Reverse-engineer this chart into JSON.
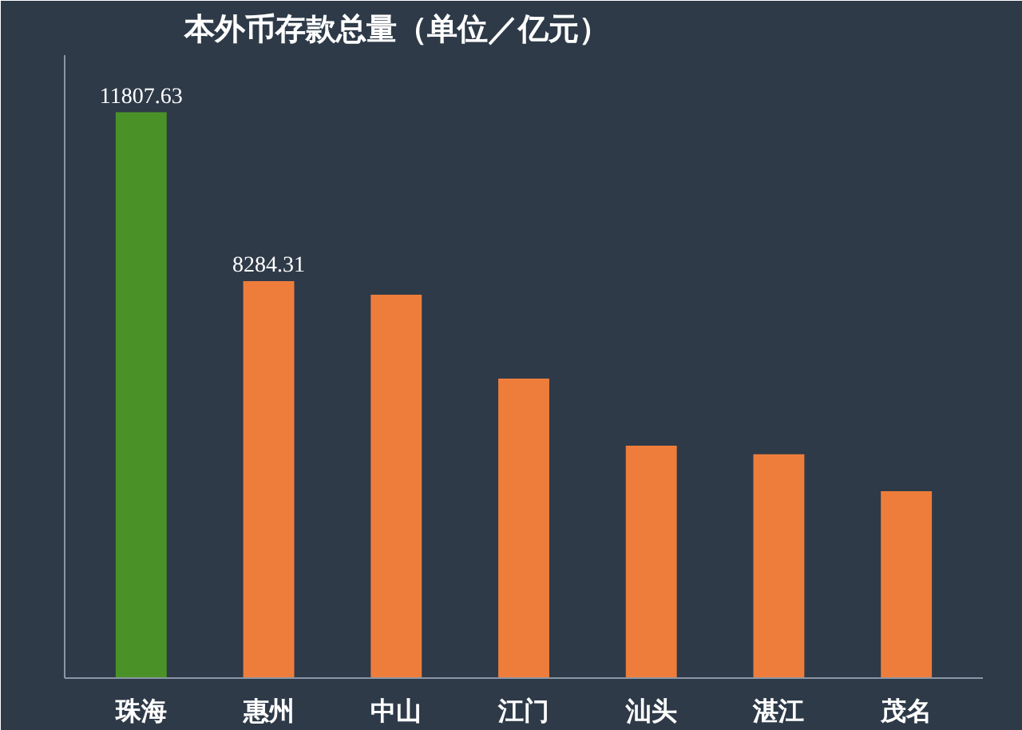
{
  "chart_data": {
    "type": "bar",
    "title": "本外币存款总量（单位／亿元）",
    "categories": [
      "珠海",
      "惠州",
      "中山",
      "江门",
      "汕头",
      "湛江",
      "茂名"
    ],
    "values": [
      11807.63,
      8284.31,
      8000,
      6250,
      4850,
      4670,
      3900
    ],
    "colors": [
      "#4a9228",
      "#ee7d3c",
      "#ee7d3c",
      "#ee7d3c",
      "#ee7d3c",
      "#ee7d3c",
      "#ee7d3c"
    ],
    "value_labels": [
      "11807.63",
      "8284.31",
      null,
      null,
      null,
      null,
      null
    ],
    "ylim": [
      0,
      13000
    ],
    "tick_labels": "x",
    "grid": false
  }
}
